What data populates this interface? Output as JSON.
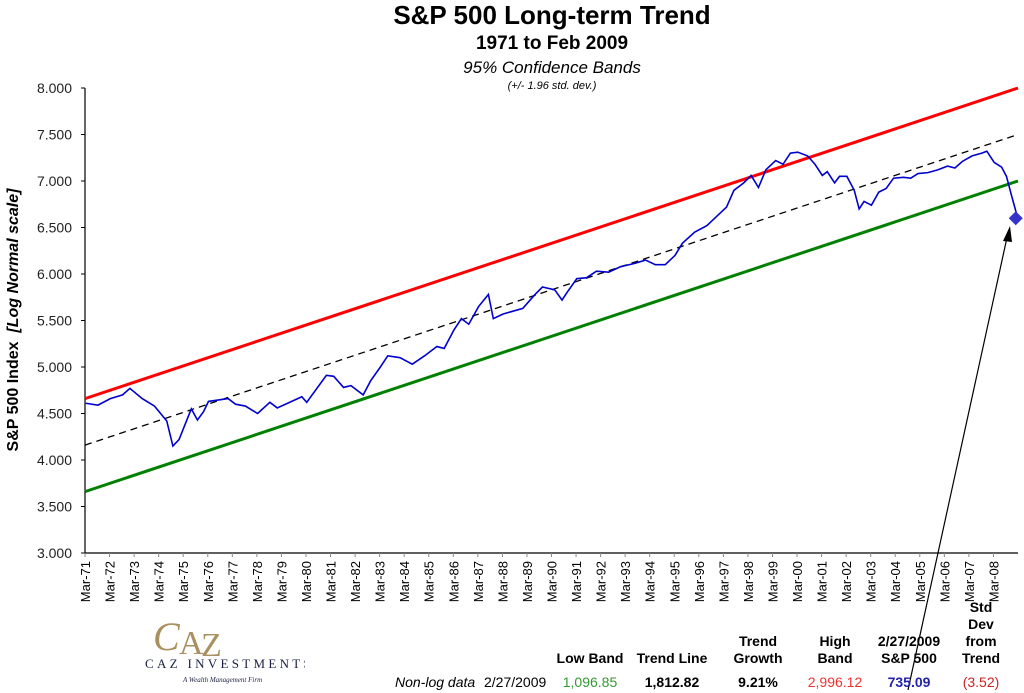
{
  "chart_data": {
    "type": "line",
    "title": "S&P 500 Long-term Trend",
    "subtitle": "1971 to Feb 2009",
    "subtitle2": "95% Confidence Bands",
    "note": "(+/- 1.96 std. dev.)",
    "ylabel": "S&P 500 Index",
    "ylabel_suffix": "[Log Normal scale]",
    "xlabel": "",
    "ylim": [
      3.0,
      8.0
    ],
    "y_scale": "natural log of index",
    "y_ticks": [
      "3.000",
      "3.500",
      "4.000",
      "4.500",
      "5.000",
      "5.500",
      "6.000",
      "6.500",
      "7.000",
      "7.500",
      "8.000"
    ],
    "x_ticks": [
      "Mar-71",
      "Mar-72",
      "Mar-73",
      "Mar-74",
      "Mar-75",
      "Mar-76",
      "Mar-77",
      "Mar-78",
      "Mar-79",
      "Mar-80",
      "Mar-81",
      "Mar-82",
      "Mar-83",
      "Mar-84",
      "Mar-85",
      "Mar-86",
      "Mar-87",
      "Mar-88",
      "Mar-89",
      "Mar-90",
      "Mar-91",
      "Mar-92",
      "Mar-93",
      "Mar-94",
      "Mar-95",
      "Mar-96",
      "Mar-97",
      "Mar-98",
      "Mar-99",
      "Mar-00",
      "Mar-01",
      "Mar-02",
      "Mar-03",
      "Mar-04",
      "Mar-05",
      "Mar-06",
      "Mar-07",
      "Mar-08"
    ],
    "xlim": [
      1971.17,
      2009.17
    ],
    "grid": false,
    "series": [
      {
        "role": "high band",
        "color": "#ff0000",
        "x": [
          1971.17,
          2009.17
        ],
        "y": [
          4.66,
          8.0
        ]
      },
      {
        "role": "trend",
        "color": "#000000",
        "dashed": true,
        "x": [
          1971.17,
          2009.17
        ],
        "y": [
          4.16,
          7.5
        ]
      },
      {
        "role": "low band",
        "color": "#008000",
        "x": [
          1971.17,
          2009.17
        ],
        "y": [
          3.66,
          7.0
        ]
      },
      {
        "role": "S&P 500",
        "color": "#0000cc",
        "x": [
          1971.2,
          1971.7,
          1972.2,
          1972.7,
          1973.0,
          1973.5,
          1974.0,
          1974.5,
          1974.75,
          1975.0,
          1975.5,
          1975.75,
          1976.0,
          1976.2,
          1977.0,
          1977.3,
          1977.7,
          1978.2,
          1978.7,
          1979.0,
          1979.5,
          1980.0,
          1980.2,
          1981.0,
          1981.3,
          1981.7,
          1982.0,
          1982.5,
          1982.8,
          1983.2,
          1983.5,
          1984.0,
          1984.5,
          1985.0,
          1985.5,
          1985.8,
          1986.2,
          1986.5,
          1986.8,
          1987.2,
          1987.6,
          1987.8,
          1988.2,
          1988.6,
          1989.0,
          1989.5,
          1989.8,
          1990.3,
          1990.6,
          1990.8,
          1991.2,
          1991.6,
          1992.0,
          1992.5,
          1993.0,
          1993.5,
          1994.0,
          1994.4,
          1994.8,
          1995.2,
          1995.5,
          1996.0,
          1996.5,
          1996.9,
          1997.3,
          1997.6,
          1998.0,
          1998.3,
          1998.6,
          1998.9,
          1999.3,
          1999.6,
          1999.9,
          2000.2,
          2000.6,
          2000.9,
          2001.2,
          2001.4,
          2001.7,
          2001.9,
          2002.2,
          2002.5,
          2002.7,
          2002.9,
          2003.2,
          2003.5,
          2003.8,
          2004.1,
          2004.5,
          2004.8,
          2005.1,
          2005.5,
          2005.9,
          2006.3,
          2006.6,
          2006.9,
          2007.3,
          2007.7,
          2007.9,
          2008.2,
          2008.5,
          2008.7,
          2008.9,
          2009.16
        ],
        "y": [
          4.61,
          4.59,
          4.66,
          4.7,
          4.77,
          4.66,
          4.58,
          4.42,
          4.15,
          4.22,
          4.55,
          4.43,
          4.52,
          4.63,
          4.66,
          4.6,
          4.58,
          4.5,
          4.62,
          4.56,
          4.62,
          4.68,
          4.62,
          4.91,
          4.9,
          4.78,
          4.8,
          4.7,
          4.85,
          5.0,
          5.12,
          5.1,
          5.03,
          5.12,
          5.22,
          5.2,
          5.4,
          5.52,
          5.46,
          5.65,
          5.78,
          5.52,
          5.57,
          5.6,
          5.63,
          5.78,
          5.86,
          5.83,
          5.72,
          5.8,
          5.95,
          5.96,
          6.03,
          6.02,
          6.08,
          6.11,
          6.15,
          6.1,
          6.1,
          6.2,
          6.33,
          6.45,
          6.52,
          6.62,
          6.72,
          6.9,
          6.98,
          7.06,
          6.93,
          7.12,
          7.22,
          7.18,
          7.3,
          7.31,
          7.27,
          7.18,
          7.06,
          7.1,
          6.98,
          7.05,
          7.05,
          6.9,
          6.7,
          6.78,
          6.74,
          6.88,
          6.92,
          7.03,
          7.04,
          7.03,
          7.08,
          7.09,
          7.12,
          7.16,
          7.14,
          7.21,
          7.27,
          7.3,
          7.32,
          7.2,
          7.15,
          7.05,
          6.85,
          6.6
        ]
      }
    ],
    "last_point": {
      "x": 2009.16,
      "y": 6.6,
      "marker": "diamond",
      "color": "#3333cc"
    }
  },
  "summary": {
    "row_label": "Non-log data",
    "date": "2/27/2009",
    "columns": [
      {
        "header": [
          "Low Band"
        ],
        "value": "1,096.85",
        "color": "#339933",
        "bold": false
      },
      {
        "header": [
          "Trend Line"
        ],
        "value": "1,812.82",
        "color": "#000000",
        "bold": true
      },
      {
        "header": [
          "Trend",
          "Growth"
        ],
        "value": "9.21%",
        "color": "#000000",
        "bold": true
      },
      {
        "header": [
          "High",
          "Band"
        ],
        "value": "2,996.12",
        "color": "#ee3333",
        "bold": false
      },
      {
        "header": [
          "2/27/2009",
          "S&P 500"
        ],
        "value": "735.09",
        "color": "#2222aa",
        "bold": true
      },
      {
        "header": [
          "Std Dev",
          "from",
          "Trend"
        ],
        "value": "(3.52)",
        "color": "#cc2222",
        "bold": false
      }
    ]
  },
  "logo": {
    "mark": "CAZ",
    "name": "CAZ INVESTMENTS",
    "tagline": "A Wealth Management Firm",
    "color": "#a89060",
    "text_color": "#1a2040"
  }
}
